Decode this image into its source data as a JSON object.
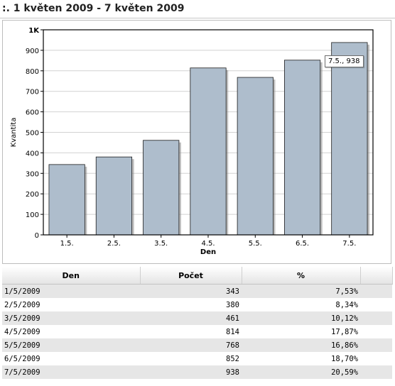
{
  "header": {
    "title": ":. 1 květen 2009 - 7 květen 2009"
  },
  "tooltip": {
    "text": "7.5., 938"
  },
  "chart_data": {
    "type": "bar",
    "title": "",
    "xlabel": "Den",
    "ylabel": "Kvantita",
    "categories": [
      "1.5.",
      "2.5.",
      "3.5.",
      "4.5.",
      "5.5.",
      "6.5.",
      "7.5."
    ],
    "values": [
      343,
      380,
      461,
      814,
      768,
      852,
      938
    ],
    "ylim": [
      0,
      1000
    ],
    "yticks": [
      "0",
      "100",
      "200",
      "300",
      "400",
      "500",
      "600",
      "700",
      "800",
      "900",
      "1K"
    ],
    "grid": true,
    "colors": {
      "bar": "#aebdcc",
      "bar_border": "#1c1c1c",
      "shadow": "#888888",
      "grid": "#d2d2d2"
    }
  },
  "table": {
    "columns": [
      "Den",
      "Počet",
      "%"
    ],
    "rows": [
      [
        "1/5/2009",
        "343",
        "7,53%"
      ],
      [
        "2/5/2009",
        "380",
        "8,34%"
      ],
      [
        "3/5/2009",
        "461",
        "10,12%"
      ],
      [
        "4/5/2009",
        "814",
        "17,87%"
      ],
      [
        "5/5/2009",
        "768",
        "16,86%"
      ],
      [
        "6/5/2009",
        "852",
        "18,70%"
      ],
      [
        "7/5/2009",
        "938",
        "20,59%"
      ]
    ]
  }
}
